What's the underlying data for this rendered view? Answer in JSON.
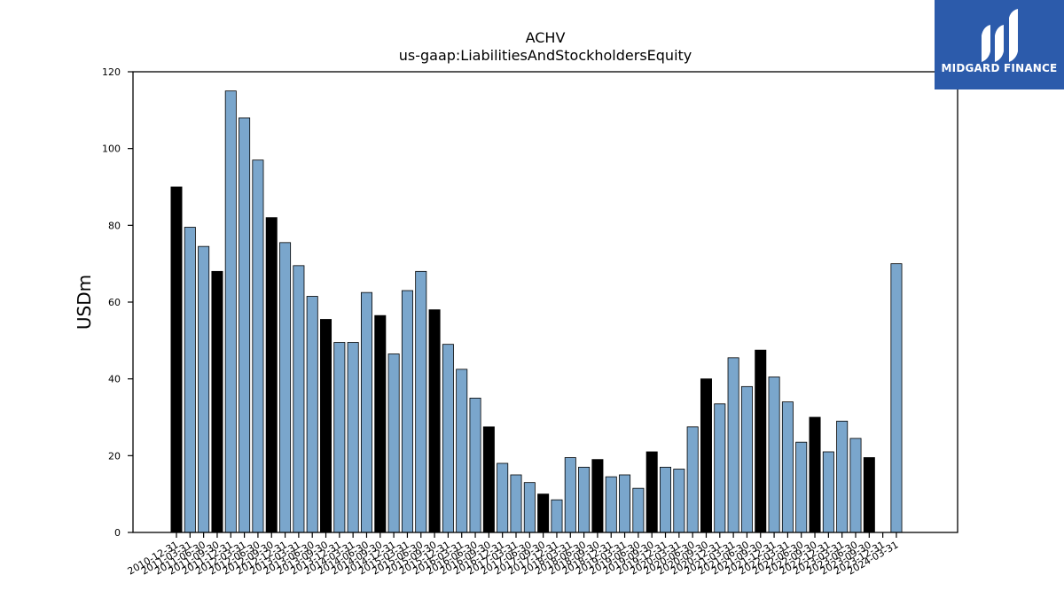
{
  "chart_data": {
    "type": "bar",
    "title": "ACHV",
    "subtitle": "us-gaap:LiabilitiesAndStockholdersEquity",
    "xlabel": "",
    "ylabel": "USDm",
    "ylim": [
      0,
      120
    ],
    "yticks": [
      0,
      20,
      40,
      60,
      80,
      100,
      120
    ],
    "grid": false,
    "colors": {
      "annual": "#000000",
      "quarterly": "#7aa6cc",
      "edge": "#000000"
    },
    "categories": [
      "2010-12-31",
      "2011-03-31",
      "2011-06-30",
      "2011-09-30",
      "2011-12-31",
      "2012-03-31",
      "2012-06-30",
      "2012-09-30",
      "2012-12-31",
      "2013-03-31",
      "2013-06-30",
      "2013-09-30",
      "2013-12-31",
      "2014-03-31",
      "2014-06-30",
      "2014-09-30",
      "2014-12-31",
      "2015-03-31",
      "2015-06-30",
      "2015-09-30",
      "2015-12-31",
      "2016-03-31",
      "2016-06-30",
      "2016-09-30",
      "2016-12-31",
      "2017-03-31",
      "2017-06-30",
      "2017-09-30",
      "2017-12-31",
      "2018-03-31",
      "2018-06-30",
      "2018-09-30",
      "2018-12-31",
      "2019-03-31",
      "2019-06-30",
      "2019-09-30",
      "2019-12-31",
      "2020-03-31",
      "2020-06-30",
      "2020-09-30",
      "2020-12-31",
      "2021-03-31",
      "2021-06-30",
      "2021-09-30",
      "2021-12-31",
      "2022-03-31",
      "2022-06-30",
      "2022-09-30",
      "2022-12-31",
      "2023-03-31",
      "2023-06-30",
      "2023-09-30",
      "2023-12-31",
      "2024-03-31"
    ],
    "values": [
      90,
      79.5,
      74.5,
      68,
      115,
      108,
      97,
      82,
      75.5,
      69.5,
      61.5,
      55.5,
      49.5,
      49.5,
      62.5,
      56.5,
      46.5,
      63,
      68,
      58,
      49,
      42.5,
      35,
      27.5,
      18,
      15,
      13,
      10,
      8.5,
      19.5,
      17,
      19,
      14.5,
      15,
      11.5,
      21,
      17,
      16.5,
      27.5,
      40,
      33.5,
      45.5,
      38,
      47.5,
      40.5,
      34,
      23.5,
      30,
      21,
      29,
      24.5,
      19.5,
      null,
      70
    ],
    "annual": [
      true,
      false,
      false,
      true,
      false,
      false,
      false,
      true,
      false,
      false,
      false,
      true,
      false,
      false,
      false,
      true,
      false,
      false,
      false,
      true,
      false,
      false,
      false,
      true,
      false,
      false,
      false,
      true,
      false,
      false,
      false,
      true,
      false,
      false,
      false,
      true,
      false,
      false,
      false,
      true,
      false,
      false,
      false,
      true,
      false,
      false,
      false,
      true,
      false,
      false,
      false,
      true,
      false,
      false
    ]
  },
  "logo": {
    "text": "MIDGARD FINANCE"
  }
}
